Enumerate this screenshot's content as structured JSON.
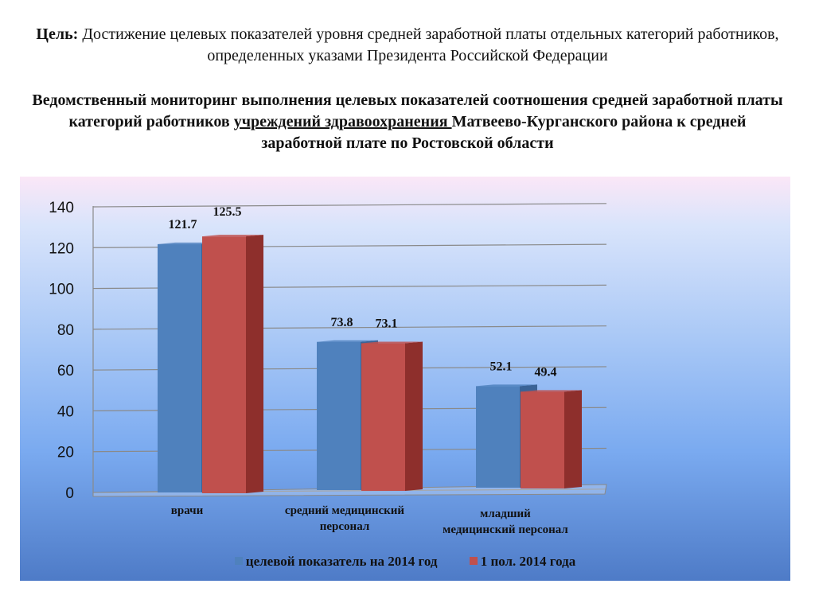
{
  "header": {
    "lead": "Цель:",
    "text": " Достижение целевых показателей уровня средней заработной платы отдельных категорий работников, определенных указами Президента Российской Федерации"
  },
  "subtitle": {
    "part1": "Ведомственный мониторинг выполнения целевых показателей соотношения средней заработной платы категорий работников ",
    "underlined": "учреждений здравоохранения ",
    "part2": "Матвеево-Курганского района к средней заработной плате по Ростовской области"
  },
  "colors": {
    "series1": "#4f81bd",
    "series2": "#c0504d"
  },
  "chart_data": {
    "type": "bar",
    "categories": [
      "врачи",
      "средний медицинский персонал",
      "младший медицинский персонал"
    ],
    "category_lines": [
      [
        "врачи"
      ],
      [
        "средний медицинский",
        "персонал"
      ],
      [
        "младший",
        "медицинский персонал"
      ]
    ],
    "series": [
      {
        "name": "целевой показатель на 2014 год",
        "values": [
          121.7,
          73.8,
          52.1
        ]
      },
      {
        "name": "1 пол. 2014 года",
        "values": [
          125.5,
          73.1,
          49.4
        ]
      }
    ],
    "data_labels": [
      [
        "121.7",
        "73.8",
        "52.1"
      ],
      [
        "125.5",
        "73.1",
        "49.4"
      ]
    ],
    "yticks": [
      "0",
      "20",
      "40",
      "60",
      "80",
      "100",
      "120",
      "140"
    ],
    "ylim": [
      0,
      140
    ],
    "grid": true,
    "legend": "bottom"
  }
}
